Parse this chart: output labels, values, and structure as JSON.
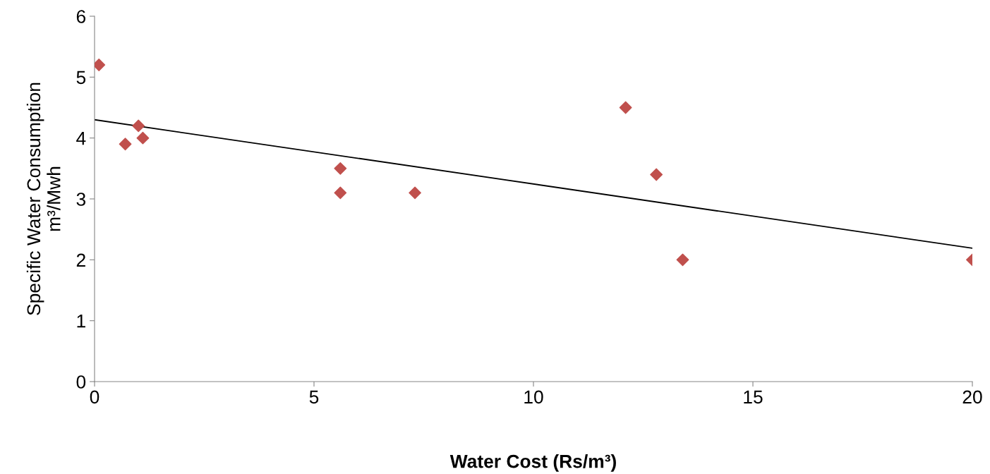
{
  "chart_data": {
    "type": "scatter",
    "xlabel": "Water Cost (Rs/m³)",
    "ylabel": "Specific Water Consumption\nm³/Mwh",
    "x": [
      0.1,
      0.7,
      1.0,
      1.1,
      5.6,
      5.6,
      7.3,
      12.1,
      12.8,
      13.4,
      20
    ],
    "series": [
      {
        "color": "#c0504d",
        "values": [
          5.2,
          3.9,
          4.2,
          4.0,
          3.5,
          3.1,
          3.1,
          4.5,
          3.4,
          2.0,
          2.0
        ],
        "marker": "diamond"
      },
      {
        "type": "line",
        "color": "#000000",
        "x": [
          0,
          20
        ],
        "values": [
          4.3,
          2.19
        ],
        "marker": "none",
        "line_style": "solid"
      }
    ],
    "xlim": [
      0,
      20
    ],
    "xticks": [
      0,
      5,
      10,
      15,
      20
    ],
    "ylim": [
      0,
      6
    ],
    "yticks": [
      0,
      1,
      2,
      3,
      4,
      5,
      6
    ],
    "grid": false,
    "legend": false
  }
}
